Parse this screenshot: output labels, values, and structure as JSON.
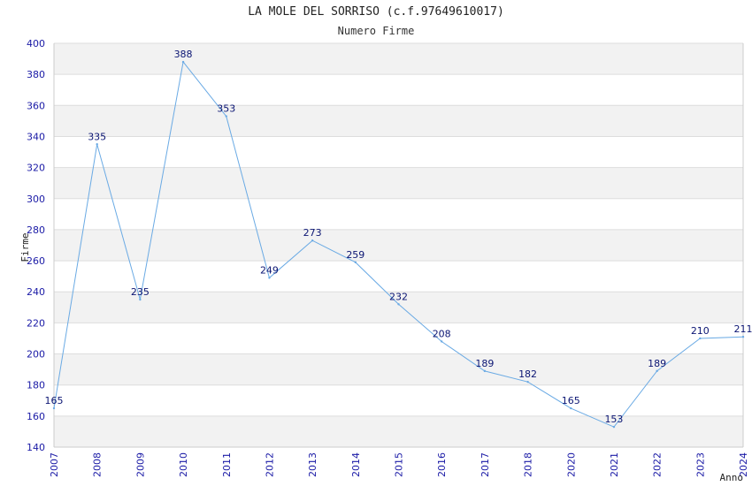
{
  "chart_data": {
    "type": "line",
    "title": "LA MOLE DEL SORRISO (c.f.97649610017)",
    "subtitle": "Numero Firme",
    "xlabel": "Anno",
    "ylabel": "Firme",
    "ylim": [
      140,
      400
    ],
    "ystep": 20,
    "grid": true,
    "categories": [
      "2007",
      "2008",
      "2009",
      "2010",
      "2011",
      "2012",
      "2013",
      "2014",
      "2015",
      "2016",
      "2017",
      "2018",
      "2020",
      "2021",
      "2022",
      "2023",
      "2024"
    ],
    "series": [
      {
        "values": [
          165,
          335,
          235,
          388,
          353,
          249,
          273,
          259,
          232,
          208,
          189,
          182,
          165,
          153,
          189,
          210,
          211
        ],
        "color": "#6aaae4"
      }
    ],
    "colors": {
      "tick_label": "#1a1aa6",
      "data_label": "#0b1573",
      "band": "#f2f2f2",
      "grid": "#dddddd",
      "axis": "#cccccc"
    }
  }
}
